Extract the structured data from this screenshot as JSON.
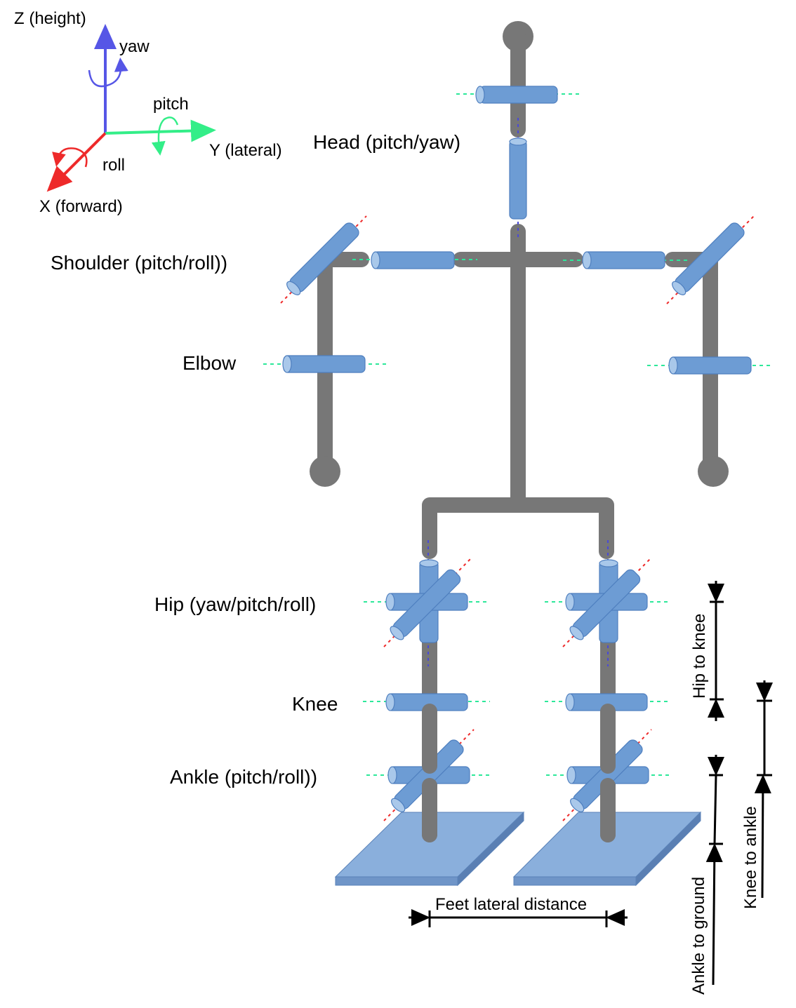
{
  "axes": {
    "z_label": "Z (height)",
    "y_label": "Y (lateral)",
    "x_label": "X  (forward)",
    "yaw": "yaw",
    "pitch": "pitch",
    "roll": "roll",
    "colors": {
      "z": "#5656e6",
      "y": "#33ee88",
      "x": "#ee2a2a"
    }
  },
  "joints": {
    "head": "Head (pitch/yaw)",
    "shoulder": "Shoulder (pitch/roll))",
    "elbow": "Elbow",
    "hip": "Hip (yaw/pitch/roll)",
    "knee": "Knee",
    "ankle": "Ankle (pitch/roll))"
  },
  "dimensions": {
    "hip_to_knee": "Hip to knee",
    "knee_to_ankle": "Knee to ankle",
    "ankle_to_ground": "Ankle to ground",
    "feet_lateral": "Feet lateral distance"
  },
  "colors": {
    "bone": "#777777",
    "actuator": "#6d9cd4",
    "foot": "#8aafdc"
  }
}
